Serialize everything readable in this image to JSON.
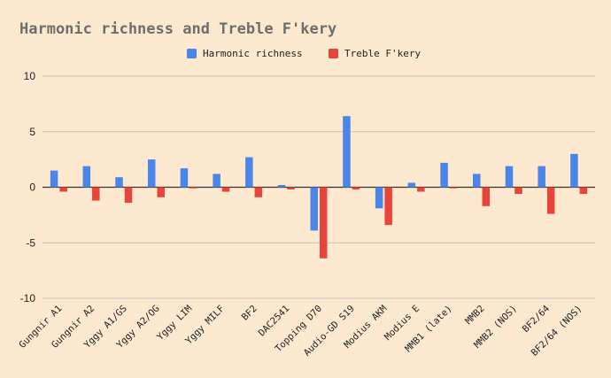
{
  "chart_data": {
    "type": "bar",
    "title": "Harmonic richness  and Treble F'kery",
    "xlabel": "",
    "ylabel": "",
    "ylim": [
      -10,
      10
    ],
    "yticks": [
      -10,
      -5,
      0,
      5,
      10
    ],
    "grid": true,
    "legend_position": "top-center",
    "categories": [
      "Gungnir A1",
      "Gungnir A2",
      "Yggy A1/GS",
      "Yggy A2/OG",
      "Yggy LIM",
      "Yggy MILF",
      "BF2",
      "DAC2541",
      "Topping D70",
      "Audio-GD S19",
      "Modius AKM",
      "Modius E",
      "MMB1 (late)",
      "MMB2",
      "MMB2 (NOS)",
      "BF2/64",
      "BF2/64 (NOS)"
    ],
    "series": [
      {
        "name": "Harmonic richness",
        "color": "#4a86e8",
        "values": [
          1.5,
          1.9,
          0.9,
          2.5,
          1.7,
          1.2,
          2.7,
          0.2,
          -3.9,
          6.4,
          -1.9,
          0.4,
          2.2,
          1.2,
          1.9,
          1.9,
          3.0
        ]
      },
      {
        "name": "Treble F'kery",
        "color": "#e8443a",
        "values": [
          -0.4,
          -1.2,
          -1.4,
          -0.9,
          -0.1,
          -0.4,
          -0.9,
          -0.2,
          -6.4,
          -0.2,
          -3.4,
          -0.4,
          -0.1,
          -1.7,
          -0.6,
          -2.4,
          -0.6
        ]
      }
    ]
  }
}
